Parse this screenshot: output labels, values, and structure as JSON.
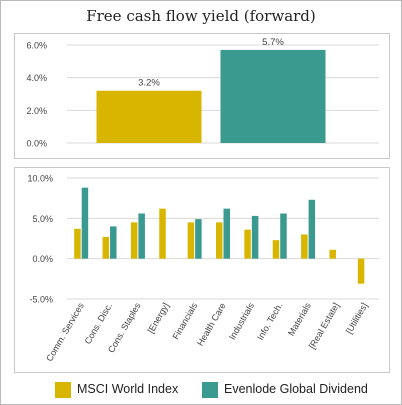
{
  "title": "Free cash flow yield (forward)",
  "colors": {
    "msci": "#d8b600",
    "evenlode": "#3b9a8f",
    "grid": "#d9d9d9",
    "axis": "#555555"
  },
  "chart_data": [
    {
      "type": "bar",
      "title": "Free cash flow yield (forward)",
      "categories": [
        "MSCI World Index",
        "Evenlode Global Dividend"
      ],
      "values": [
        3.2,
        5.7
      ],
      "value_labels": [
        "3.2%",
        "5.7%"
      ],
      "ylim": [
        0,
        6
      ],
      "yticks": [
        0,
        2,
        4,
        6
      ],
      "ytick_labels": [
        "0.0%",
        "2.0%",
        "4.0%",
        "6.0%"
      ],
      "grid": true
    },
    {
      "type": "bar",
      "categories": [
        "Comm. Services",
        "Cons. Disc.",
        "Cons. Staples",
        "[Energy]",
        "Financials",
        "Health Care",
        "Industrials",
        "Info. Tech.",
        "Materials",
        "[Real Estate]",
        "[Utilities]"
      ],
      "series": [
        {
          "name": "MSCI World Index",
          "values": [
            3.7,
            2.7,
            4.5,
            6.2,
            4.5,
            4.5,
            3.6,
            2.3,
            3.0,
            1.1,
            -3.1
          ]
        },
        {
          "name": "Evenlode Global Dividend",
          "values": [
            8.8,
            4.0,
            5.6,
            null,
            4.9,
            6.2,
            5.3,
            5.6,
            7.3,
            null,
            null
          ]
        }
      ],
      "ylim": [
        -5,
        10
      ],
      "yticks": [
        -5,
        0,
        5,
        10
      ],
      "ytick_labels": [
        "-5.0%",
        "0.0%",
        "5.0%",
        "10.0%"
      ],
      "grid": true,
      "legend": "bottom"
    }
  ],
  "legend": [
    {
      "label": "MSCI World Index"
    },
    {
      "label": "Evenlode Global Dividend"
    }
  ]
}
